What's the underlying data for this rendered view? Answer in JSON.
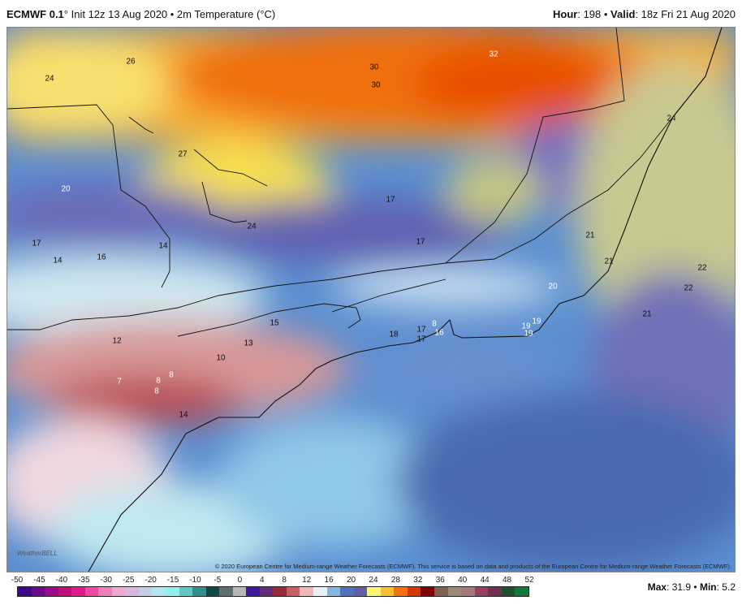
{
  "header": {
    "model": "ECMWF 0.1",
    "degree": "°",
    "init": " Init 12z 13 Aug 2020 • 2m Temperature (°C)",
    "hour_label": "Hour",
    "hour": ": 198 • ",
    "valid_label": "Valid",
    "valid": ": 18z Fri 21 Aug 2020"
  },
  "map": {
    "labels": [
      {
        "t": "26"
      },
      {
        "t": "24"
      },
      {
        "t": "30"
      },
      {
        "t": "30"
      },
      {
        "t": "32"
      },
      {
        "t": "24"
      },
      {
        "t": "27"
      },
      {
        "t": "20"
      },
      {
        "t": "17"
      },
      {
        "t": "24"
      },
      {
        "t": "17"
      },
      {
        "t": "14"
      },
      {
        "t": "17"
      },
      {
        "t": "21"
      },
      {
        "t": "14"
      },
      {
        "t": "16"
      },
      {
        "t": "21"
      },
      {
        "t": "22"
      },
      {
        "t": "20"
      },
      {
        "t": "22"
      },
      {
        "t": "21"
      },
      {
        "t": "15"
      },
      {
        "t": "19"
      },
      {
        "t": "19"
      },
      {
        "t": "8"
      },
      {
        "t": "17"
      },
      {
        "t": "18"
      },
      {
        "t": "16"
      },
      {
        "t": "19"
      },
      {
        "t": "17"
      },
      {
        "t": "12"
      },
      {
        "t": "13"
      },
      {
        "t": "10"
      },
      {
        "t": "7"
      },
      {
        "t": "8"
      },
      {
        "t": "8"
      },
      {
        "t": "8"
      },
      {
        "t": "14"
      }
    ],
    "copyright": "© 2020 European Centre for Medium-range Weather Forecasts (ECMWF). This service is based on data and products of the European Centre for Medium-range Weather Forecasts (ECMWF).",
    "logo": "WeatherBELL"
  },
  "colorbar": {
    "ticks": [
      "-50",
      "-45",
      "-40",
      "-35",
      "-30",
      "-25",
      "-20",
      "-15",
      "-10",
      "-5",
      "0",
      "4",
      "8",
      "12",
      "16",
      "20",
      "24",
      "28",
      "32",
      "36",
      "40",
      "44",
      "48",
      "52"
    ],
    "colors": [
      "#3a0a8a",
      "#6a0a8a",
      "#9a0a8a",
      "#c0107a",
      "#e01a8a",
      "#f04aa0",
      "#f080b8",
      "#f0a8d0",
      "#d8b8e0",
      "#c0d0e8",
      "#b0e8f0",
      "#90f0f0",
      "#60c8c8",
      "#309090",
      "#104848",
      "#607070",
      "#b8b8b8",
      "#3a1a9a",
      "#6a2a7a",
      "#9a2a3a",
      "#c86060",
      "#f0b8b8",
      "#e8f0f8",
      "#80b8e0",
      "#5070c0",
      "#6060a8",
      "#f8f870",
      "#f8c030",
      "#f87010",
      "#d83800",
      "#800000",
      "#806050",
      "#a08878",
      "#a87878",
      "#984060",
      "#703050",
      "#205030",
      "#107838"
    ]
  },
  "stats": {
    "max_label": "Max",
    "max": ": 31.9 • ",
    "min_label": "Min",
    "min": ": 5.2"
  }
}
